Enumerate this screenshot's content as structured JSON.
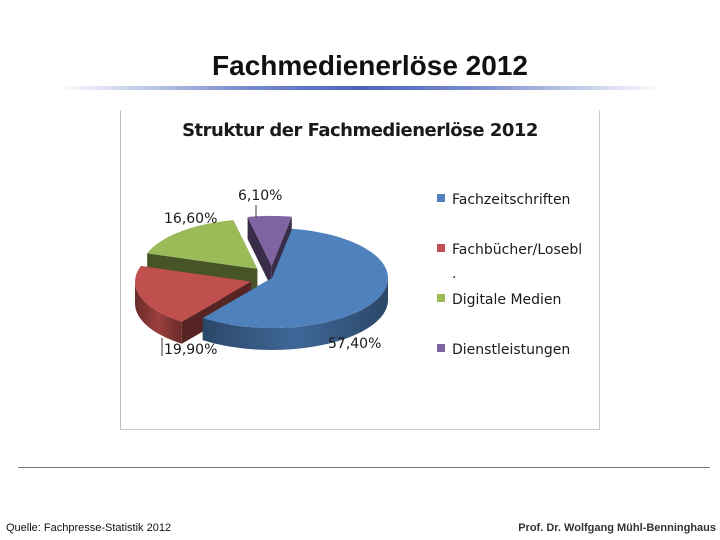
{
  "slide": {
    "title": "Fachmedienerlöse 2012",
    "source": "Quelle: Fachpresse-Statistik 2012",
    "author": "Prof. Dr. Wolfgang Mühl-Benninghaus"
  },
  "chart_data": {
    "type": "pie",
    "title": "Struktur der Fachmedienerlöse 2012",
    "exploded": true,
    "three_d": true,
    "legend_position": "right",
    "slices": [
      {
        "name": "Fachzeitschriften",
        "value": 57.4,
        "label": "57,40%",
        "color": "#4f81bd"
      },
      {
        "name": "Fachbücher/Losebl",
        "value": 19.9,
        "label": "19,90%",
        "color": "#c0504d"
      },
      {
        "name": "Digitale Medien",
        "value": 16.6,
        "label": "16,60%",
        "color": "#9bbb59"
      },
      {
        "name": "Dienstleistungen",
        "value": 6.1,
        "label": "6,10%",
        "color": "#8064a2"
      }
    ],
    "legend_wrap_text": "."
  }
}
